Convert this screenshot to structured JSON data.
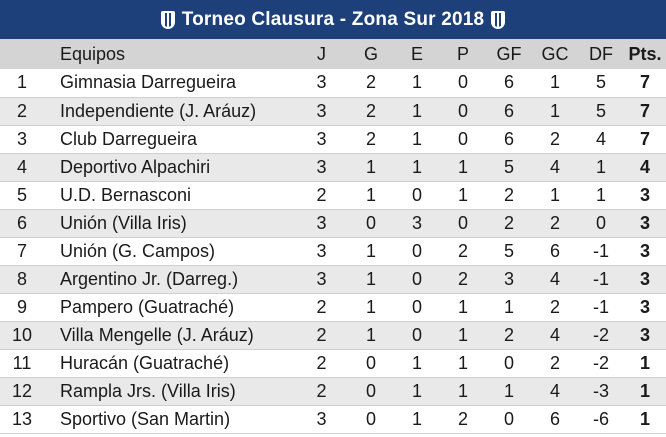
{
  "title": "Torneo Clausura - Zona Sur 2018",
  "headers": {
    "pos": "",
    "team": "Equipos",
    "j": "J",
    "g": "G",
    "e": "E",
    "p": "P",
    "gf": "GF",
    "gc": "GC",
    "df": "DF",
    "pts": "Pts."
  },
  "rows": [
    {
      "pos": "1",
      "team": "Gimnasia Darregueira",
      "j": "3",
      "g": "2",
      "e": "1",
      "p": "0",
      "gf": "6",
      "gc": "1",
      "df": "5",
      "pts": "7"
    },
    {
      "pos": "2",
      "team": "Independiente (J. Aráuz)",
      "j": "3",
      "g": "2",
      "e": "1",
      "p": "0",
      "gf": "6",
      "gc": "1",
      "df": "5",
      "pts": "7"
    },
    {
      "pos": "3",
      "team": "Club Darregueira",
      "j": "3",
      "g": "2",
      "e": "1",
      "p": "0",
      "gf": "6",
      "gc": "2",
      "df": "4",
      "pts": "7"
    },
    {
      "pos": "4",
      "team": "Deportivo Alpachiri",
      "j": "3",
      "g": "1",
      "e": "1",
      "p": "1",
      "gf": "5",
      "gc": "4",
      "df": "1",
      "pts": "4"
    },
    {
      "pos": "5",
      "team": "U.D. Bernasconi",
      "j": "2",
      "g": "1",
      "e": "0",
      "p": "1",
      "gf": "2",
      "gc": "1",
      "df": "1",
      "pts": "3"
    },
    {
      "pos": "6",
      "team": "Unión (Villa Iris)",
      "j": "3",
      "g": "0",
      "e": "3",
      "p": "0",
      "gf": "2",
      "gc": "2",
      "df": "0",
      "pts": "3"
    },
    {
      "pos": "7",
      "team": "Unión (G. Campos)",
      "j": "3",
      "g": "1",
      "e": "0",
      "p": "2",
      "gf": "5",
      "gc": "6",
      "df": "-1",
      "pts": "3"
    },
    {
      "pos": "8",
      "team": "Argentino Jr. (Darreg.)",
      "j": "3",
      "g": "1",
      "e": "0",
      "p": "2",
      "gf": "3",
      "gc": "4",
      "df": "-1",
      "pts": "3"
    },
    {
      "pos": "9",
      "team": "Pampero (Guatraché)",
      "j": "2",
      "g": "1",
      "e": "0",
      "p": "1",
      "gf": "1",
      "gc": "2",
      "df": "-1",
      "pts": "3"
    },
    {
      "pos": "10",
      "team": "Villa Mengelle (J. Aráuz)",
      "j": "2",
      "g": "1",
      "e": "0",
      "p": "1",
      "gf": "2",
      "gc": "4",
      "df": "-2",
      "pts": "3"
    },
    {
      "pos": "11",
      "team": "Huracán (Guatraché)",
      "j": "2",
      "g": "0",
      "e": "1",
      "p": "1",
      "gf": "0",
      "gc": "2",
      "df": "-2",
      "pts": "1"
    },
    {
      "pos": "12",
      "team": "Rampla Jrs. (Villa Iris)",
      "j": "2",
      "g": "0",
      "e": "1",
      "p": "1",
      "gf": "1",
      "gc": "4",
      "df": "-3",
      "pts": "1"
    },
    {
      "pos": "13",
      "team": "Sportivo (San Martin)",
      "j": "3",
      "g": "0",
      "e": "1",
      "p": "2",
      "gf": "0",
      "gc": "6",
      "df": "-6",
      "pts": "1"
    }
  ],
  "colors": {
    "title_bg": "#1d3f7a",
    "header_bg": "#d4d4d4",
    "row_alt_bg": "#e9e9e9"
  },
  "icons": {
    "left": "club-crest-icon",
    "right": "club-crest-icon"
  }
}
